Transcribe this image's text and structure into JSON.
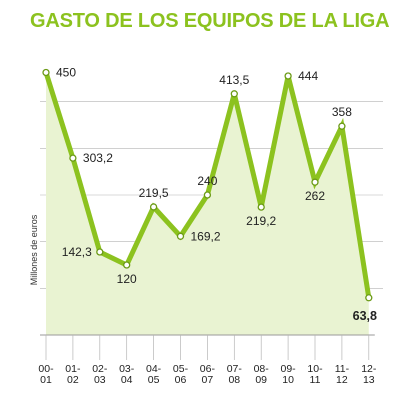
{
  "colors": {
    "title": "#8cc21f",
    "line": "#8cc21f",
    "fill": "#e9f3d2",
    "marker_stroke": "#6b9a16",
    "grid": "#b5b5b5",
    "text": "#222222"
  },
  "chart_data": {
    "type": "area",
    "title": "GASTO DE LOS EQUIPOS DE LA LIGA",
    "xlabel": "",
    "ylabel": "Millones de euros",
    "ylim": [
      0,
      480
    ],
    "grid": "horizontal",
    "categories": [
      [
        "00-",
        "01"
      ],
      [
        "01-",
        "02"
      ],
      [
        "02-",
        "03"
      ],
      [
        "03-",
        "04"
      ],
      [
        "04-",
        "05"
      ],
      [
        "05-",
        "06"
      ],
      [
        "06-",
        "07"
      ],
      [
        "07-",
        "08"
      ],
      [
        "08-",
        "09"
      ],
      [
        "09-",
        "10"
      ],
      [
        "10-",
        "11"
      ],
      [
        "11-",
        "12"
      ],
      [
        "12-",
        "13"
      ]
    ],
    "values": [
      450,
      303.2,
      142.3,
      120,
      219.5,
      169.2,
      240,
      413.5,
      219.2,
      444,
      262,
      358,
      63.8
    ],
    "value_labels": [
      "450",
      "303,2",
      "142,3",
      "120",
      "219,5",
      "169,2",
      "240",
      "413,5",
      "219,2",
      "444",
      "262",
      "358",
      "63,8"
    ],
    "label_positions": [
      "right",
      "right",
      "left",
      "below",
      "above",
      "right",
      "above",
      "above",
      "below",
      "right",
      "below",
      "above",
      "below"
    ],
    "highlight_last": true
  }
}
